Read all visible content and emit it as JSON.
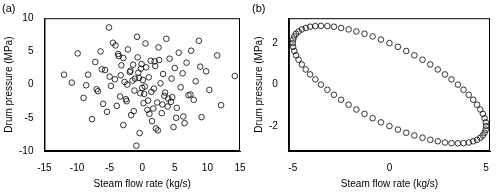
{
  "chart_data": [
    {
      "type": "scatter",
      "title": "(a)",
      "x_label": "Steam flow rate (kg/s)",
      "y_label": "Drum pressure (MPa)",
      "color": "#000000",
      "marker": "circle",
      "grid": false,
      "xlim": [
        -15,
        15
      ],
      "xticks": [
        -15,
        -10,
        -5,
        0,
        5,
        10,
        15
      ],
      "ylim": [
        -10,
        10
      ],
      "yticks": [
        -10,
        -5,
        0,
        5,
        10
      ],
      "x": [
        14.2,
        12.1,
        11.5,
        10.3,
        9.8,
        9.1,
        8.7,
        8.2,
        7.9,
        7.5,
        7.1,
        6.8,
        6.5,
        6.2,
        5.9,
        5.6,
        5.3,
        5.0,
        4.8,
        4.5,
        4.2,
        4.0,
        3.7,
        3.5,
        3.2,
        3.0,
        2.8,
        2.5,
        2.3,
        2.0,
        1.8,
        1.5,
        1.3,
        1.0,
        0.8,
        0.5,
        0.3,
        0.1,
        -0.2,
        -0.4,
        -0.7,
        -0.9,
        -1.2,
        -1.4,
        -1.7,
        -1.9,
        -2.2,
        -2.4,
        -2.7,
        -2.9,
        -3.2,
        -3.4,
        -3.7,
        -3.9,
        -4.2,
        -4.5,
        -4.8,
        -5.1,
        -5.4,
        -5.7,
        -6.0,
        -6.4,
        -6.8,
        -7.2,
        -7.7,
        -8.3,
        -9.0,
        -9.9,
        -10.8,
        -12.0,
        0.6,
        -0.3,
        1.7,
        -1.1,
        2.6,
        -2.5,
        3.4,
        -3.6,
        0.0,
        1.1,
        -0.6,
        2.1,
        -1.8,
        4.4,
        -4.1,
        0.4,
        -0.1,
        1.4,
        -1.5,
        3.1,
        -2.9,
        5.2,
        -5.0,
        6.3,
        -6.2,
        0.9,
        -0.8,
        2.4,
        -2.3,
        3.9,
        -3.3,
        7.4,
        -7.0,
        8.9,
        -8.6,
        0.2,
        -0.5,
        1.9,
        -1.3,
        4.6
      ],
      "values": [
        1.3,
        -3.1,
        4.4,
        -0.8,
        2.0,
        -4.9,
        6.6,
        0.5,
        -2.3,
        5.1,
        -1.6,
        3.3,
        -5.8,
        1.7,
        -0.4,
        4.8,
        -3.5,
        2.5,
        -6.4,
        0.9,
        3.9,
        -2.1,
        6.9,
        -1.2,
        1.6,
        -4.3,
        0.2,
        5.6,
        -2.7,
        2.8,
        -0.6,
        -5.5,
        3.6,
        1.1,
        -3.8,
        6.2,
        -1.4,
        0.7,
        2.4,
        -7.3,
        4.1,
        -9.2,
        -0.9,
        3.0,
        -4.6,
        1.9,
        5.3,
        -2.5,
        0.4,
        -6.1,
        2.9,
        -1.8,
        4.6,
        -3.2,
        0.8,
        6.3,
        -0.2,
        8.6,
        -4.1,
        2.2,
        -2.9,
        5.0,
        -1.0,
        3.4,
        -5.2,
        1.5,
        -2.0,
        4.7,
        0.3,
        1.5,
        2.6,
        -1.3,
        -3.6,
        0.9,
        3.7,
        -2.2,
        -1.7,
        4.3,
        -0.5,
        -4.4,
        1.8,
        -6.6,
        2.1,
        -2.6,
        5.9,
        -0.3,
        3.1,
        -1.1,
        0.6,
        -3.0,
        4.0,
        -5.0,
        1.2,
        -4.8,
        2.3,
        -2.4,
        7.2,
        -6.9,
        0.0,
        -3.3,
        1.4,
        -1.5,
        -0.7,
        2.7,
        -0.1,
        -2.8,
        1.0,
        3.5,
        -4.0,
        -1.9
      ]
    },
    {
      "type": "scatter",
      "title": "(b)",
      "x_label": "Steam flow rate (kg/s)",
      "y_label": "Drum pressure (MPa)",
      "color": "#000000",
      "marker": "circle",
      "grid": false,
      "xlim": [
        -5.2,
        5.2
      ],
      "xticks": [
        -5,
        0,
        5
      ],
      "ylim": [
        -3.2,
        3.2
      ],
      "yticks": [
        -2,
        0,
        2
      ],
      "x": [
        5,
        4.98,
        4.92,
        4.83,
        4.7,
        4.53,
        4.33,
        4.1,
        3.83,
        3.54,
        3.21,
        2.87,
        2.5,
        2.11,
        1.71,
        1.29,
        0.87,
        0.44,
        0,
        -0.44,
        -0.87,
        -1.29,
        -1.71,
        -2.11,
        -2.5,
        -2.87,
        -3.21,
        -3.54,
        -3.83,
        -4.1,
        -4.33,
        -4.53,
        -4.7,
        -4.83,
        -4.92,
        -4.98,
        -5,
        -4.98,
        -4.92,
        -4.83,
        -4.7,
        -4.53,
        -4.33,
        -4.1,
        -3.83,
        -3.54,
        -3.21,
        -2.87,
        -2.5,
        -2.11,
        -1.71,
        -1.29,
        -0.87,
        -0.44,
        0,
        0.44,
        0.87,
        1.29,
        1.71,
        2.11,
        2.5,
        2.87,
        3.21,
        3.54,
        3.83,
        4.1,
        4.33,
        4.53,
        4.7,
        4.83,
        4.92,
        4.98
      ],
      "values": [
        -2,
        -1.82,
        -1.62,
        -1.41,
        -1.2,
        -0.97,
        -0.73,
        -0.49,
        -0.25,
        0,
        0.25,
        0.49,
        0.73,
        0.97,
        1.2,
        1.41,
        1.62,
        1.82,
        2,
        2.17,
        2.32,
        2.45,
        2.56,
        2.66,
        2.73,
        2.79,
        2.82,
        2.83,
        2.82,
        2.79,
        2.73,
        2.66,
        2.56,
        2.45,
        2.32,
        2.17,
        2,
        1.82,
        1.62,
        1.41,
        1.2,
        0.97,
        0.73,
        0.49,
        0.25,
        0,
        -0.25,
        -0.49,
        -0.73,
        -0.97,
        -1.2,
        -1.41,
        -1.62,
        -1.82,
        -2,
        -2.17,
        -2.32,
        -2.45,
        -2.56,
        -2.66,
        -2.73,
        -2.79,
        -2.82,
        -2.83,
        -2.82,
        -2.79,
        -2.73,
        -2.66,
        -2.56,
        -2.45,
        -2.32,
        -2.17
      ]
    }
  ]
}
